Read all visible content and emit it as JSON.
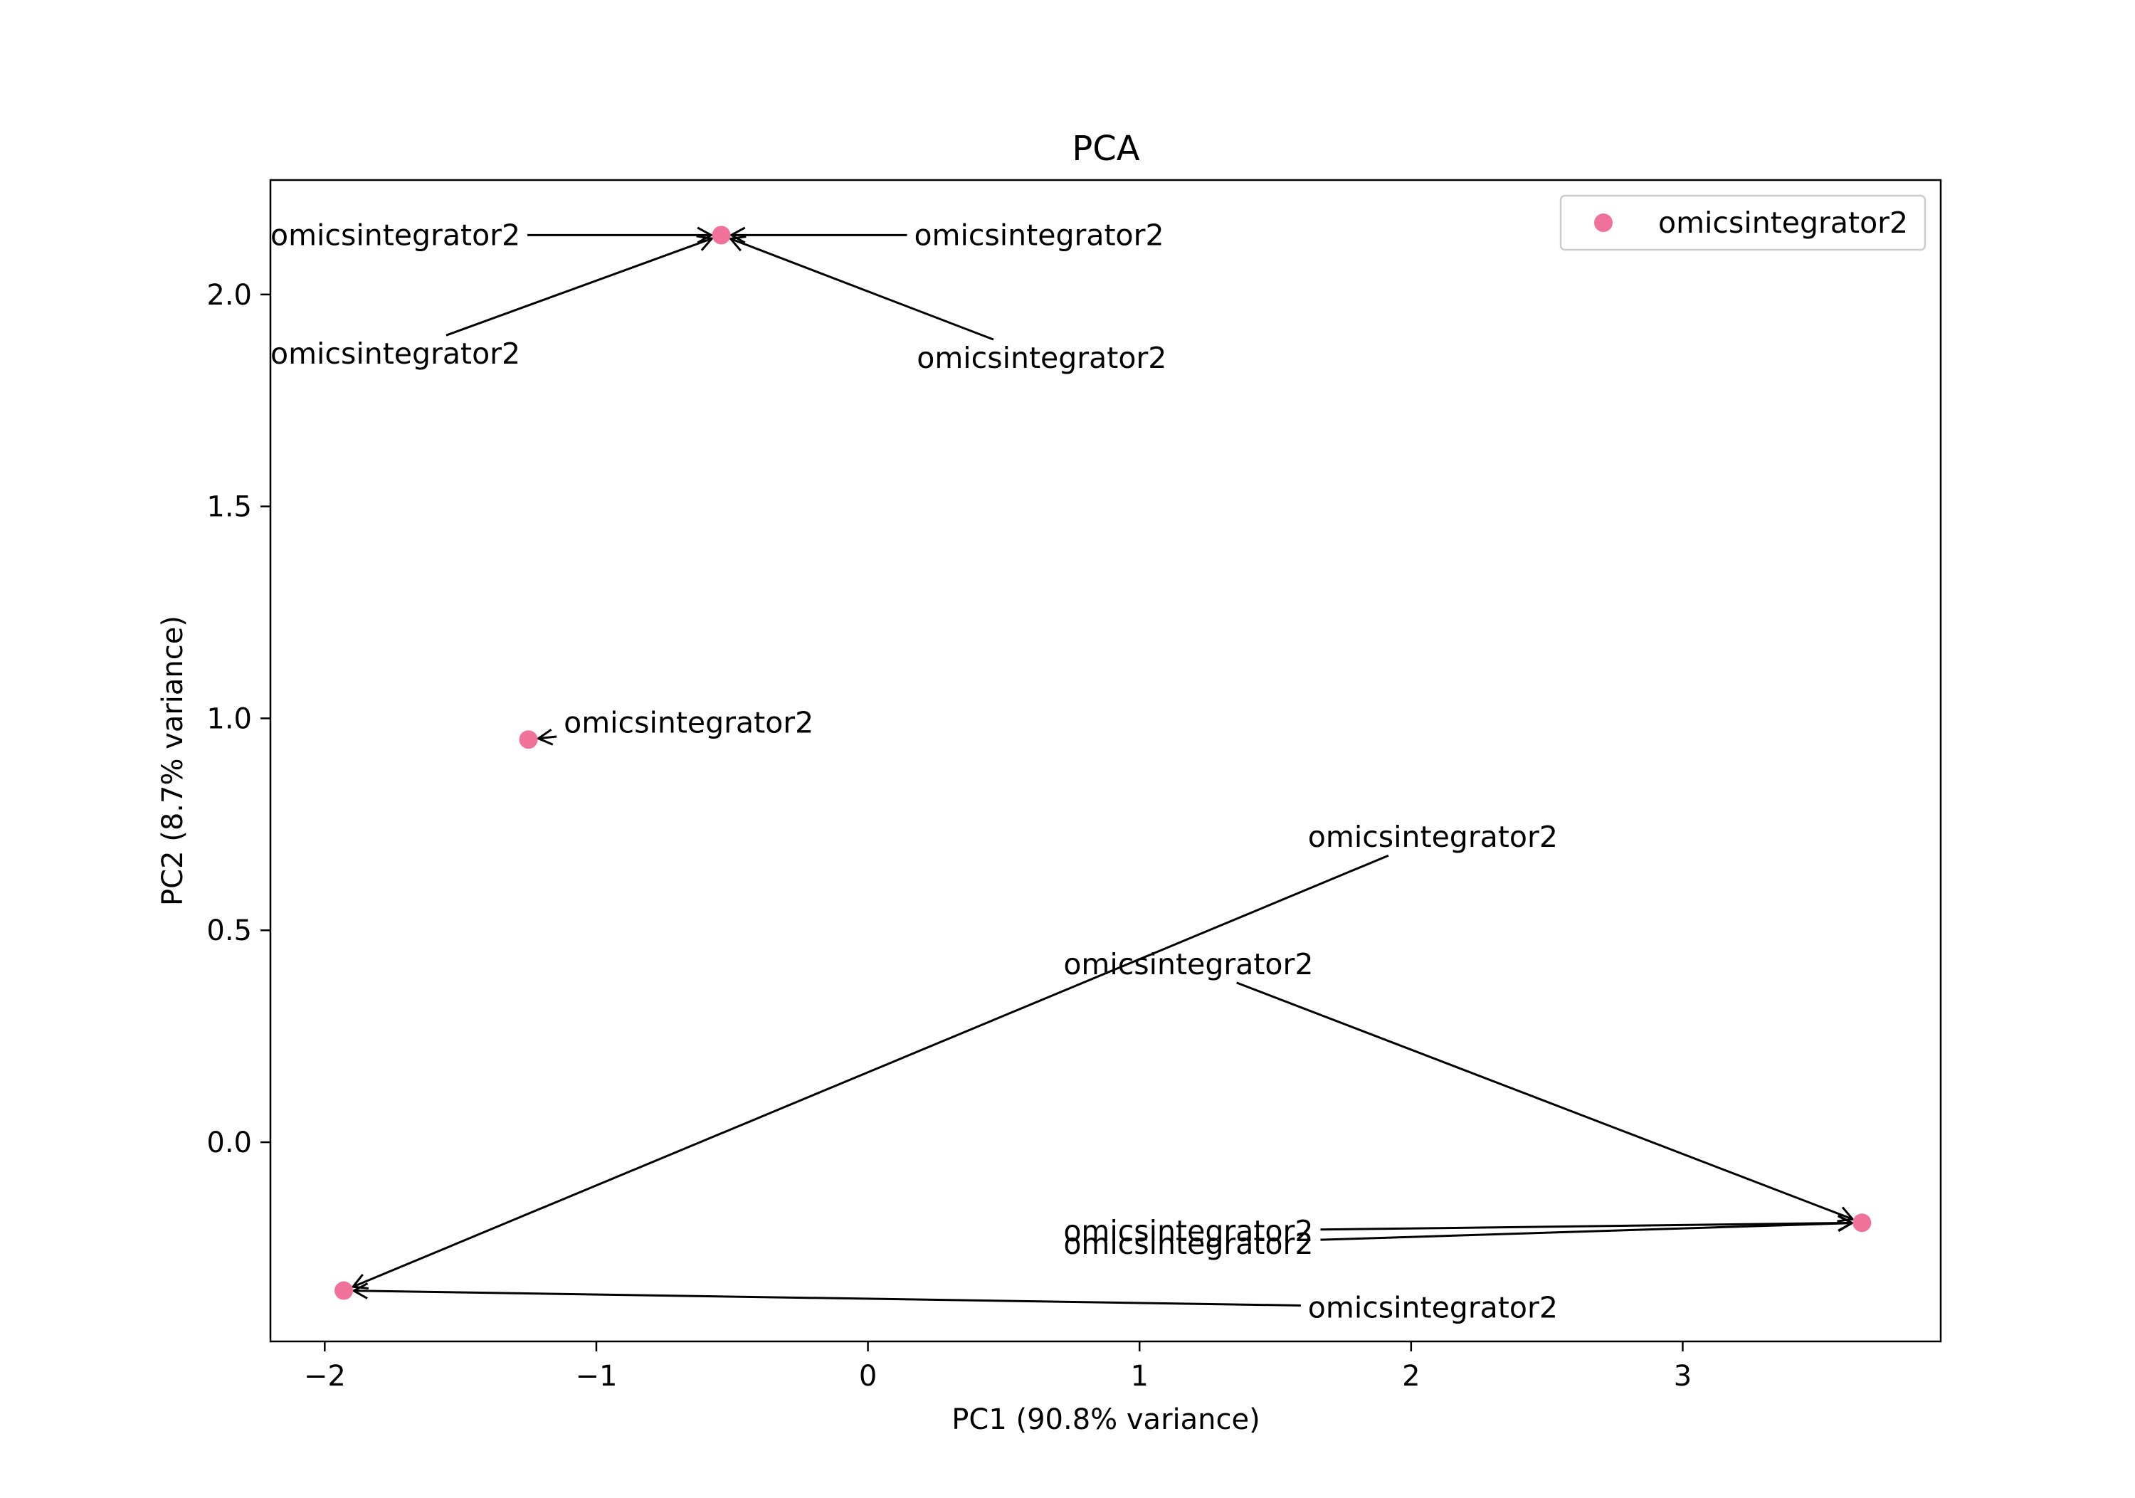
{
  "chart_data": {
    "type": "scatter",
    "title": "PCA",
    "xlabel": "PC1 (90.8% variance)",
    "ylabel": "PC2 (8.7% variance)",
    "xlim": [
      -2.2,
      3.95
    ],
    "ylim": [
      -0.47,
      2.27
    ],
    "x_ticks": [
      -2,
      -1,
      0,
      1,
      2,
      3
    ],
    "x_tick_labels": [
      "−2",
      "−1",
      "0",
      "1",
      "2",
      "3"
    ],
    "y_ticks": [
      0.0,
      0.5,
      1.0,
      1.5,
      2.0
    ],
    "y_tick_labels": [
      "0.0",
      "0.5",
      "1.0",
      "1.5",
      "2.0"
    ],
    "grid": false,
    "legend": {
      "position": "top-right",
      "entries": [
        "omicsintegrator2"
      ]
    },
    "series": [
      {
        "name": "omicsintegrator2",
        "color": "#f0729a",
        "points": [
          {
            "x": -0.54,
            "y": 2.14
          },
          {
            "x": -1.25,
            "y": 0.95
          },
          {
            "x": -1.93,
            "y": -0.35
          },
          {
            "x": 3.66,
            "y": -0.19
          }
        ]
      }
    ],
    "annotations": [
      {
        "text": "omicsintegrator2",
        "text_x": -2.2,
        "text_y": 2.14,
        "point": 0
      },
      {
        "text": "omicsintegrator2",
        "text_x": 0.17,
        "text_y": 2.14,
        "point": 0
      },
      {
        "text": "omicsintegrator2",
        "text_x": -2.2,
        "text_y": 1.86,
        "point": 0
      },
      {
        "text": "omicsintegrator2",
        "text_x": 0.18,
        "text_y": 1.85,
        "point": 0
      },
      {
        "text": "omicsintegrator2",
        "text_x": -1.12,
        "text_y": 0.99,
        "point": 1
      },
      {
        "text": "omicsintegrator2",
        "text_x": 1.62,
        "text_y": 0.72,
        "point": 2
      },
      {
        "text": "omicsintegrator2",
        "text_x": 0.72,
        "text_y": 0.42,
        "point": 3
      },
      {
        "text": "omicsintegrator2",
        "text_x": 0.72,
        "text_y": -0.21,
        "point": 3
      },
      {
        "text": "omicsintegrator2",
        "text_x": 0.72,
        "text_y": -0.24,
        "point": 3
      },
      {
        "text": "omicsintegrator2",
        "text_x": 1.62,
        "text_y": -0.39,
        "point": 2
      }
    ]
  }
}
